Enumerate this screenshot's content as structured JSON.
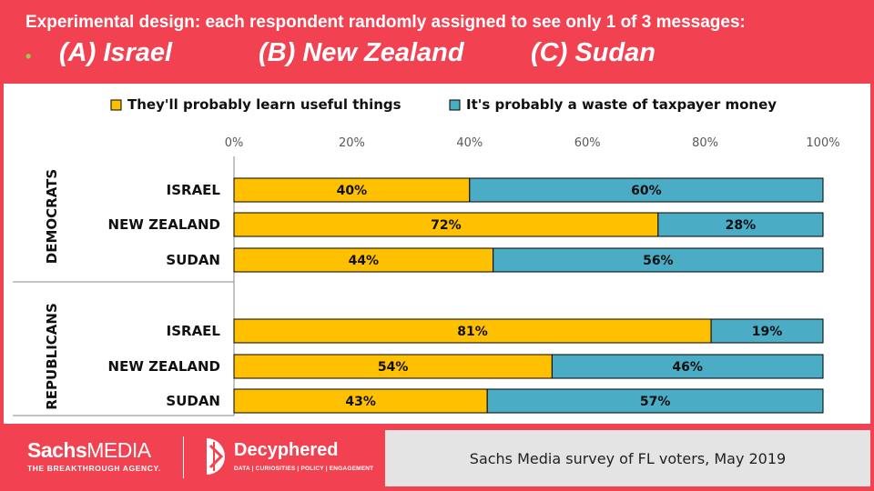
{
  "header": {
    "line1": "Experimental design: each respondent randomly assigned to see only 1 of 3 messages:",
    "bullet": "•",
    "option_a": "(A) Israel",
    "option_b": "(B) New Zealand",
    "option_c": "(C) Sudan"
  },
  "chart_data": {
    "type": "bar",
    "orientation": "horizontal",
    "stacked": true,
    "x_ticks": [
      "0%",
      "20%",
      "40%",
      "60%",
      "80%",
      "100%"
    ],
    "xlim": [
      0,
      100
    ],
    "legend_placement": "top",
    "series": [
      {
        "name": "They'll probably learn useful things",
        "color": "#ffc000"
      },
      {
        "name": "It's probably a waste of taxpayer money",
        "color": "#4bacc6"
      }
    ],
    "groups": [
      {
        "name": "DEMOCRATS",
        "categories": [
          "ISRAEL",
          "NEW ZEALAND",
          "SUDAN"
        ],
        "useful": [
          40,
          72,
          44
        ],
        "waste": [
          60,
          28,
          56
        ]
      },
      {
        "name": "REPUBLICANS",
        "categories": [
          "ISRAEL",
          "NEW ZEALAND",
          "SUDAN"
        ],
        "useful": [
          81,
          54,
          43
        ],
        "waste": [
          19,
          46,
          57
        ]
      }
    ]
  },
  "footer": {
    "sachs_word": "Sachs",
    "media_word": "MEDIA",
    "sachs_tagline": "THE BREAKTHROUGH AGENCY.",
    "decyphered_name": "Decyphered",
    "decyphered_tagline": "DATA | CURIOSITIES | POLICY | ENGAGEMENT",
    "source": "Sachs Media survey of FL voters, May 2019"
  },
  "colors": {
    "background": "#f24150",
    "useful": "#ffc000",
    "waste": "#4bacc6",
    "bullet": "#8fd14f",
    "source_box": "#e4e4e4"
  }
}
